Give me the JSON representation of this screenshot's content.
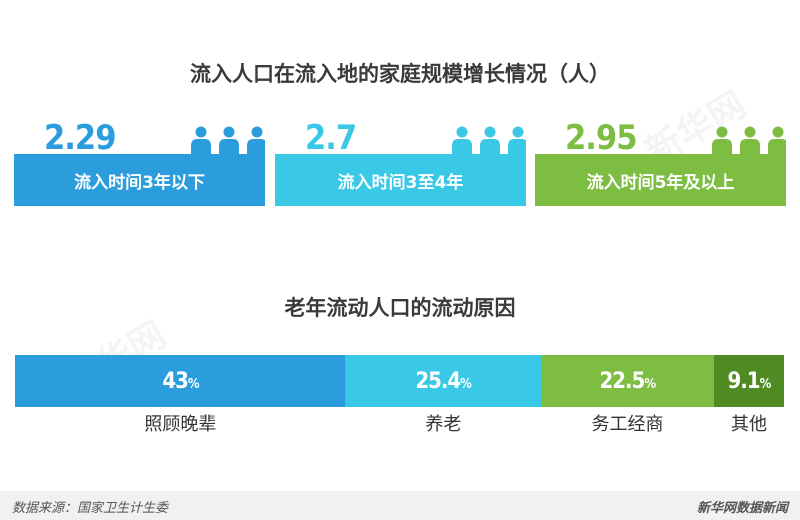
{
  "title1": "流入人口在流入地的家庭规模增长情况（人）",
  "title2": "老年流动人口的流动原因",
  "watermark": "新华网",
  "footer": {
    "source": "数据来源：国家卫生计生委",
    "brand": "新华网数据新闻"
  },
  "colors": {
    "blue": "#2b9ddc",
    "cyan": "#39c9e6",
    "green": "#7dbd42",
    "dark_green": "#4f8a22"
  },
  "chart_data": [
    {
      "type": "bar",
      "title": "流入人口在流入地的家庭规模增长情况（人）",
      "categories": [
        "流入时间3年以下",
        "流入时间3至4年",
        "流入时间5年及以上"
      ],
      "values": [
        2.29,
        2.7,
        2.95
      ],
      "value_labels": [
        "2.29",
        "2.7",
        "2.95"
      ],
      "colors": [
        "#2b9ddc",
        "#39c9e6",
        "#7dbd42"
      ]
    },
    {
      "type": "bar",
      "title": "老年流动人口的流动原因",
      "stacked": true,
      "categories": [
        "照顾晚辈",
        "养老",
        "务工经商",
        "其他"
      ],
      "values": [
        43,
        25.4,
        22.5,
        9.1
      ],
      "value_labels": [
        "43",
        "25.4",
        "22.5",
        "9.1"
      ],
      "unit": "%",
      "colors": [
        "#2b9ddc",
        "#39c9e6",
        "#7dbd42",
        "#4f8a22"
      ]
    }
  ]
}
